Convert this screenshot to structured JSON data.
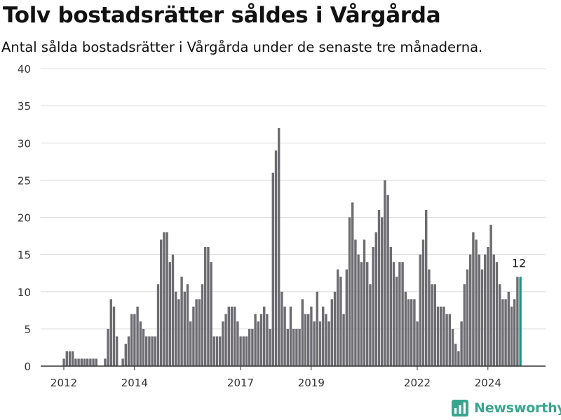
{
  "title": "Tolv bostadsrätter såldes i Vårgårda",
  "subtitle": "Antal sålda bostadsrätter i Vårgårda under de senaste tre månaderna.",
  "logo": {
    "text": "Newsworthy",
    "icon": "newsworthy-logo-icon",
    "color": "#3aa58f"
  },
  "colors": {
    "bar": "#6d6c71",
    "highlight": "#14988a",
    "grid": "#dddddd",
    "axis": "#333333"
  },
  "chart_data": {
    "type": "bar",
    "x_start": "2012-01",
    "ylim": [
      0,
      40
    ],
    "yticks": [
      0,
      5,
      10,
      15,
      20,
      25,
      30,
      35,
      40
    ],
    "xticks": [
      "2012",
      "2014",
      "2017",
      "2019",
      "2022",
      "2024"
    ],
    "xtick_months": [
      "2012-01",
      "2014-01",
      "2017-01",
      "2019-01",
      "2022-01",
      "2024-01"
    ],
    "grid": true,
    "highlight_last": 1,
    "last_label": "12",
    "values": [
      1,
      2,
      2,
      2,
      1,
      1,
      1,
      1,
      1,
      1,
      1,
      1,
      0,
      0,
      1,
      5,
      9,
      8,
      4,
      0,
      1,
      3,
      4,
      7,
      7,
      8,
      6,
      5,
      4,
      4,
      4,
      4,
      11,
      17,
      18,
      18,
      14,
      15,
      10,
      9,
      12,
      10,
      11,
      6,
      8,
      9,
      9,
      11,
      16,
      16,
      14,
      4,
      4,
      4,
      6,
      7,
      8,
      8,
      8,
      6,
      4,
      4,
      4,
      5,
      5,
      7,
      6,
      7,
      8,
      7,
      5,
      26,
      29,
      32,
      10,
      8,
      5,
      8,
      5,
      5,
      5,
      9,
      7,
      7,
      8,
      6,
      10,
      6,
      8,
      7,
      6,
      9,
      10,
      13,
      12,
      7,
      13,
      20,
      22,
      17,
      15,
      14,
      17,
      14,
      11,
      16,
      18,
      21,
      20,
      25,
      23,
      16,
      14,
      12,
      14,
      14,
      10,
      9,
      9,
      9,
      6,
      15,
      17,
      21,
      13,
      11,
      11,
      8,
      8,
      8,
      7,
      7,
      5,
      3,
      2,
      6,
      11,
      13,
      15,
      18,
      17,
      15,
      13,
      15,
      16,
      19,
      15,
      14,
      11,
      9,
      9,
      10,
      8,
      9,
      12,
      12
    ]
  }
}
